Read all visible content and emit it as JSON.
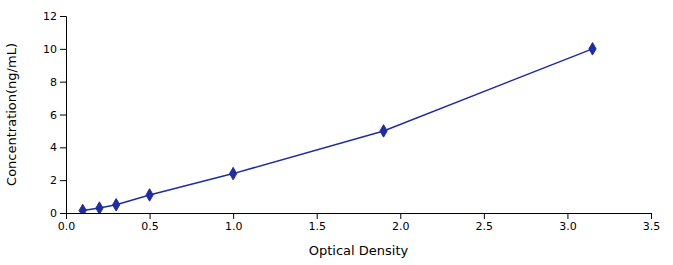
{
  "chart_data": {
    "type": "line",
    "xlabel": "Optical Density",
    "ylabel": "Concentration(ng/mL)",
    "x": [
      0.1,
      0.2,
      0.3,
      0.5,
      1.0,
      1.9,
      3.15
    ],
    "values": [
      0.15,
      0.3,
      0.5,
      1.1,
      2.4,
      5.0,
      10.0
    ],
    "color": "#1f2d9e",
    "marker": "diamond",
    "line_style": "solid",
    "xlim": [
      0,
      3.5
    ],
    "ylim": [
      0,
      12
    ],
    "xticks": [
      {
        "value": 0,
        "label": "0.0"
      },
      0.5,
      {
        "value": 1.0,
        "label": "1.0"
      },
      1.5,
      {
        "value": 2.0,
        "label": "2.0"
      },
      2.5,
      {
        "value": 3.0,
        "label": "3.0"
      },
      3.5
    ],
    "yticks": [
      0,
      2,
      4,
      6,
      8,
      10,
      12
    ],
    "grid": false
  }
}
